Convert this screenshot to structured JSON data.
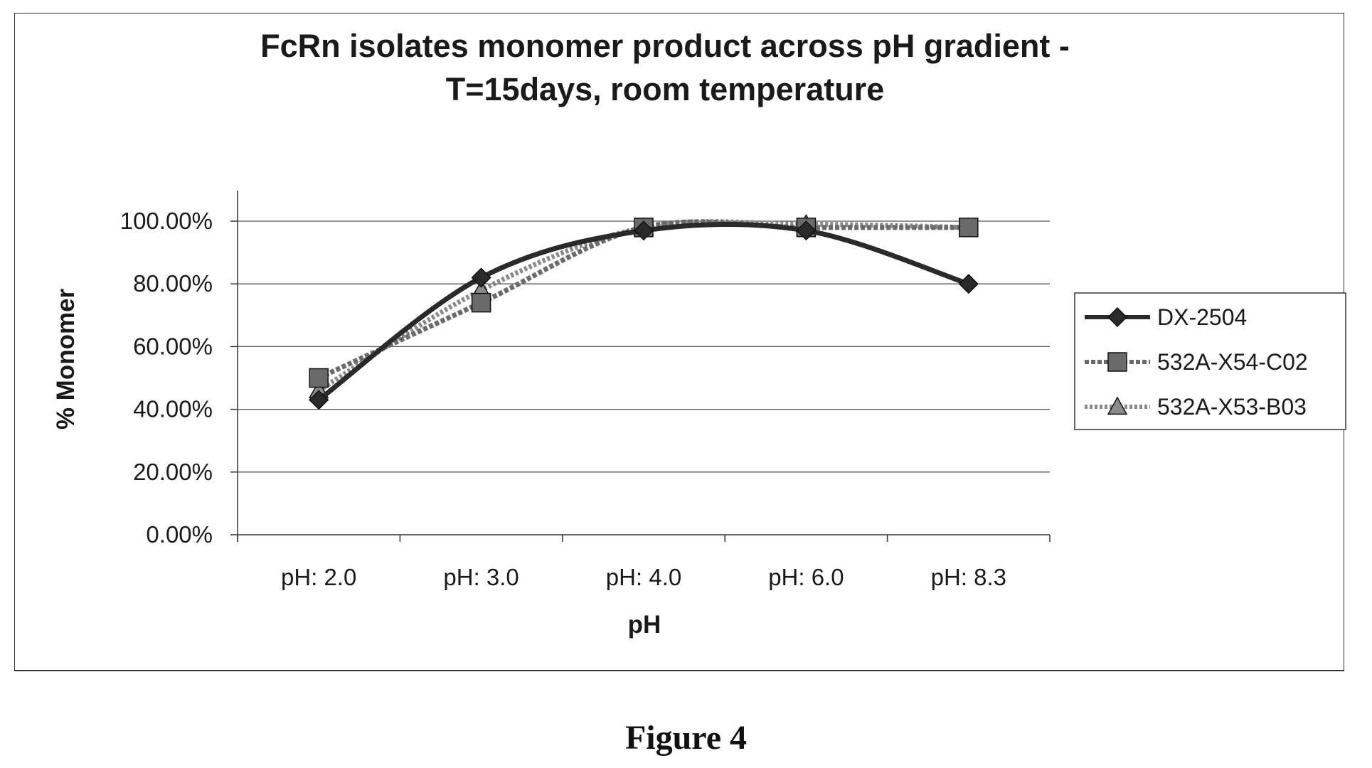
{
  "chart_data": {
    "type": "line",
    "title_line1": "FcRn isolates monomer product across pH gradient -",
    "title_line2": "T=15days, room temperature",
    "xlabel": "pH",
    "ylabel": "% Monomer",
    "categories": [
      "pH: 2.0",
      "pH: 3.0",
      "pH: 4.0",
      "pH: 6.0",
      "pH: 8.3"
    ],
    "ylim": [
      0,
      100
    ],
    "y_ticks": [
      0,
      20,
      40,
      60,
      80,
      100
    ],
    "y_tick_labels": [
      "0.00%",
      "20.00%",
      "40.00%",
      "60.00%",
      "80.00%",
      "100.00%"
    ],
    "grid": true,
    "legend_position": "right",
    "series": [
      {
        "name": "DX-2504",
        "values": [
          43,
          82,
          97,
          97,
          80
        ],
        "marker": "diamond",
        "color": "#2a2a2a",
        "dash": ""
      },
      {
        "name": "532A-X54-C02",
        "values": [
          50,
          74,
          98,
          98,
          98
        ],
        "marker": "square",
        "color": "#6a6a6a",
        "dash": "6 3"
      },
      {
        "name": "532A-X53-B03",
        "values": [
          46,
          78,
          98,
          99,
          98
        ],
        "marker": "triangle",
        "color": "#8a8a8a",
        "dash": "4 3"
      }
    ]
  },
  "caption": "Figure 4"
}
